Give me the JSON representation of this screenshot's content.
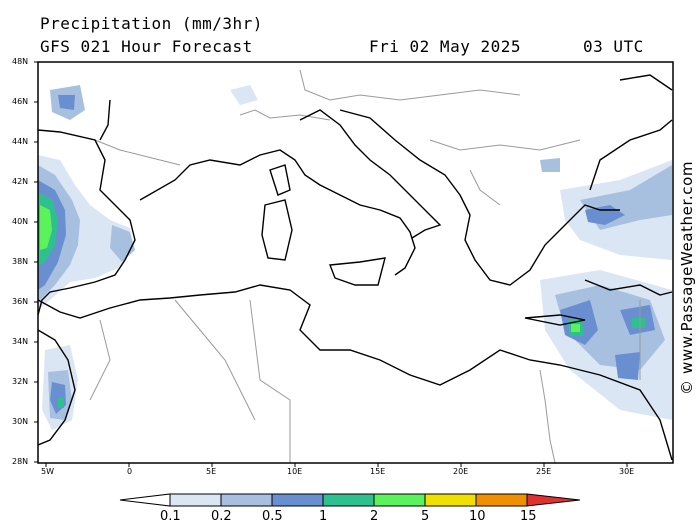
{
  "header": {
    "title": "Precipitation (mm/3hr)",
    "subtitle": "GFS 021 Hour Forecast",
    "date": "Fri 02 May 2025",
    "time": "03 UTC"
  },
  "axes": {
    "lat_labels": [
      "48N",
      "46N",
      "44N",
      "42N",
      "40N",
      "38N",
      "36N",
      "34N",
      "32N",
      "30N",
      "28N"
    ],
    "lon_labels": [
      "5W",
      "0",
      "5E",
      "10E",
      "15E",
      "20E",
      "25E",
      "30E"
    ]
  },
  "credit": "© www.PassageWeather.com",
  "colorbar": {
    "labels": [
      "0.1",
      "0.2",
      "0.5",
      "1",
      "2",
      "5",
      "10",
      "15"
    ],
    "colors": [
      "#ffffff",
      "#dbe6f5",
      "#a8c0e0",
      "#6a8fd0",
      "#2fc090",
      "#5cf25c",
      "#f0e000",
      "#f09000",
      "#e03030"
    ]
  },
  "colors": {
    "coast": "#000000",
    "border": "#9a9a9a",
    "light": "#dbe6f5",
    "pale": "#a8c0e0",
    "blue": "#6a8fd0",
    "teal": "#2fc090",
    "green": "#5cf25c"
  }
}
